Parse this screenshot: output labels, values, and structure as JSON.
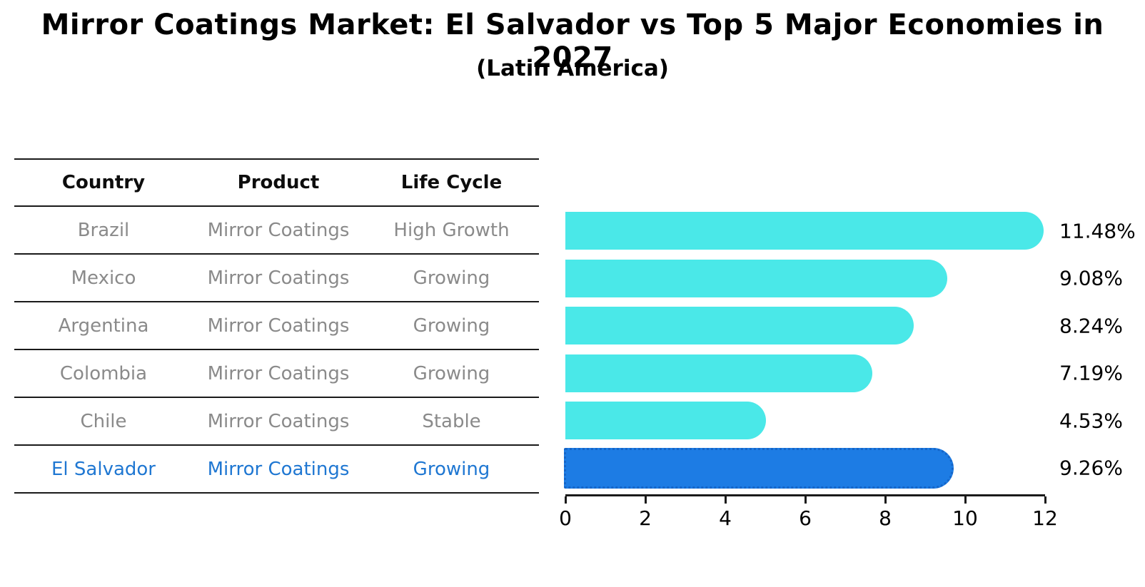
{
  "title": "Mirror Coatings Market: El Salvador vs Top 5 Major Economies in 2027",
  "subtitle": "(Latin America)",
  "table": {
    "headers": [
      "Country",
      "Product",
      "Life Cycle"
    ],
    "rows": [
      {
        "country": "Brazil",
        "product": "Mirror Coatings",
        "life_cycle": "High Growth",
        "highlight": false
      },
      {
        "country": "Mexico",
        "product": "Mirror Coatings",
        "life_cycle": "Growing",
        "highlight": false
      },
      {
        "country": "Argentina",
        "product": "Mirror Coatings",
        "life_cycle": "Growing",
        "highlight": false
      },
      {
        "country": "Colombia",
        "product": "Mirror Coatings",
        "life_cycle": "Growing",
        "highlight": false
      },
      {
        "country": "Chile",
        "product": "Mirror Coatings",
        "life_cycle": "Stable",
        "highlight": false
      },
      {
        "country": "El Salvador",
        "product": "Mirror Coatings",
        "life_cycle": "Growing",
        "highlight": true
      }
    ]
  },
  "chart_data": {
    "type": "bar",
    "orientation": "horizontal",
    "categories": [
      "Brazil",
      "Mexico",
      "Argentina",
      "Colombia",
      "Chile",
      "El Salvador"
    ],
    "values": [
      11.48,
      9.08,
      8.24,
      7.19,
      4.53,
      9.26
    ],
    "labels": [
      "11.48%",
      "9.08%",
      "8.24%",
      "7.19%",
      "4.53%",
      "9.26%"
    ],
    "xlim": [
      0,
      12
    ],
    "xticks": [
      0,
      2,
      4,
      6,
      8,
      10,
      12
    ],
    "grid": false,
    "legend": null,
    "bar_color": "#4AE8E8",
    "highlight_color": "#1D7CE4",
    "highlight_border_color": "#1565C8",
    "highlight_index": 5
  },
  "colors": {
    "highlight_text": "#1F77D2",
    "cell_text": "#8A8A8A",
    "line_color": "#1A1A1A"
  }
}
